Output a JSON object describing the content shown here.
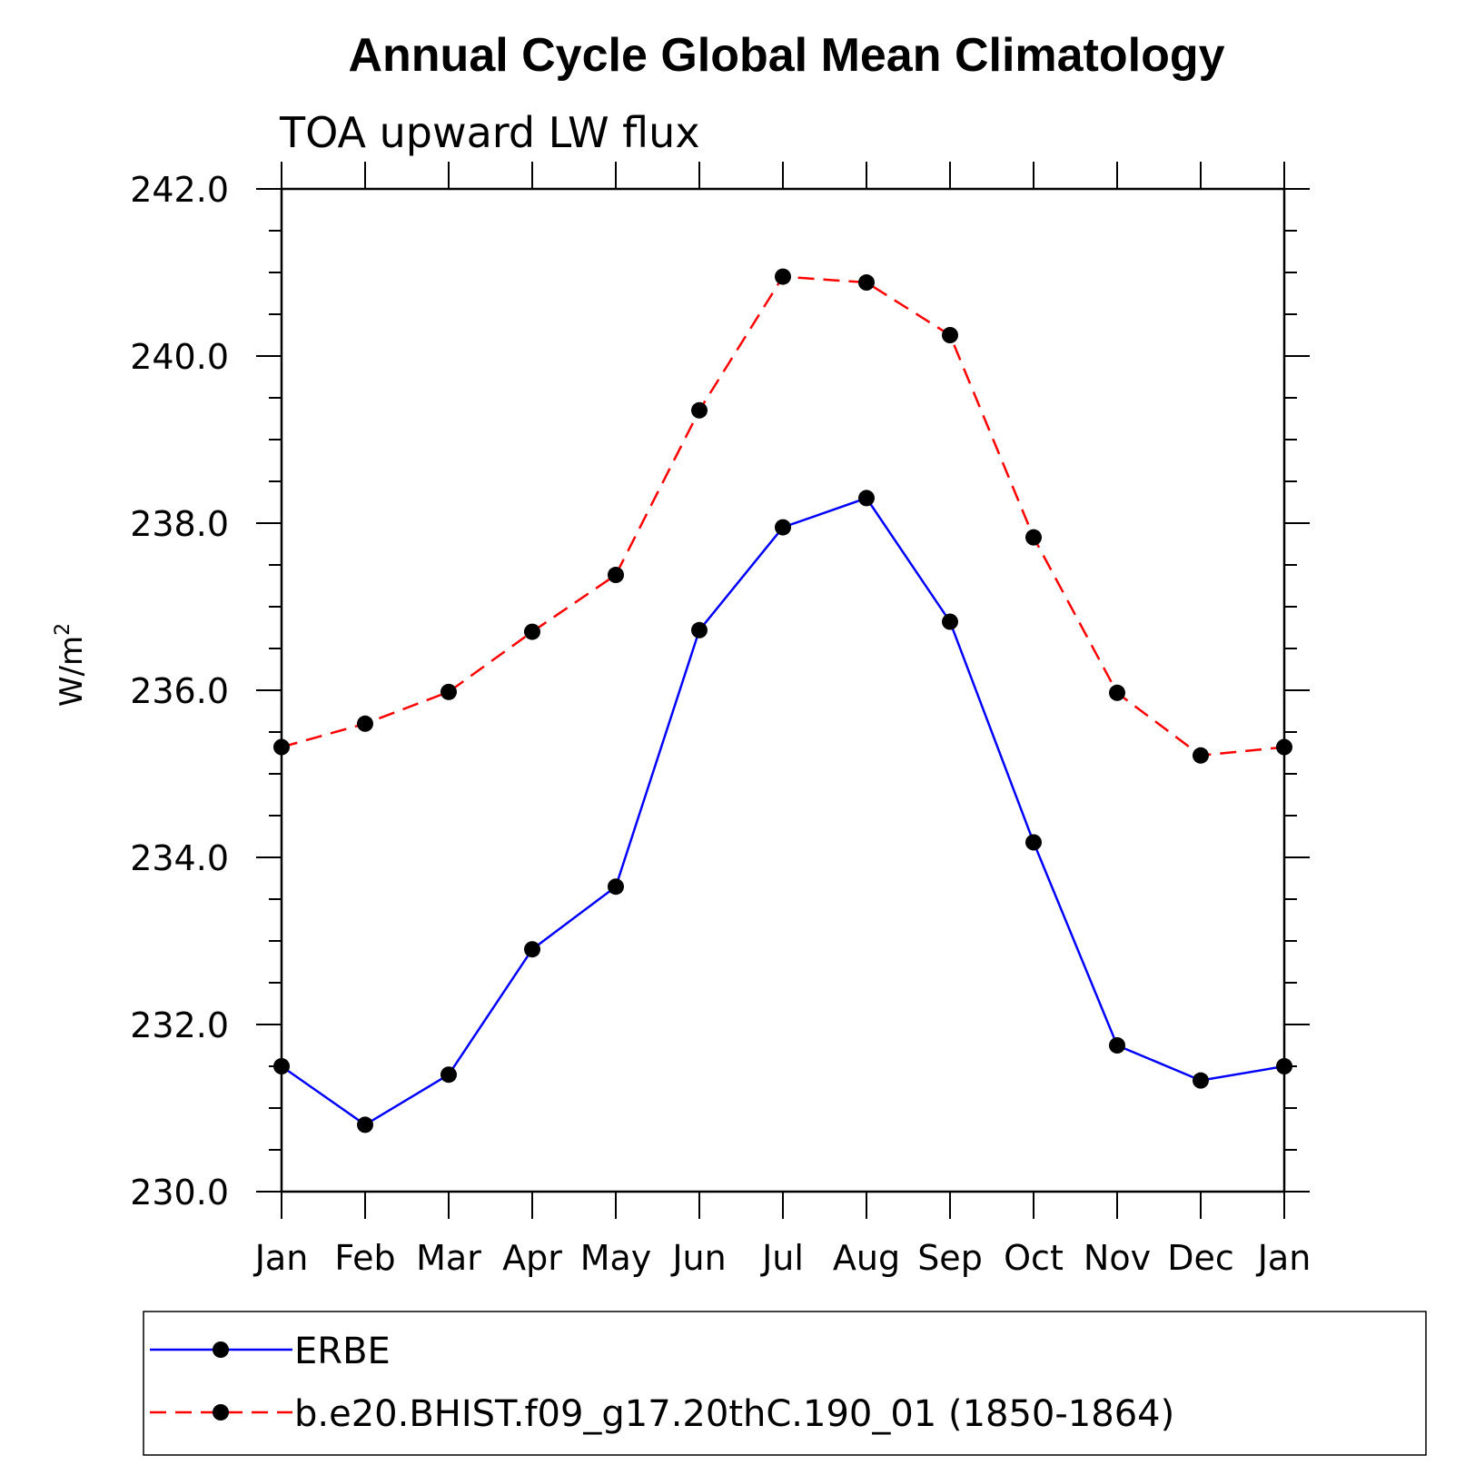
{
  "chart_data": {
    "type": "line",
    "title": "Annual Cycle Global Mean Climatology",
    "subtitle": "TOA upward LW flux",
    "xlabel": "",
    "ylabel": "W/m",
    "ylabel_sup": "2",
    "categories": [
      "Jan",
      "Feb",
      "Mar",
      "Apr",
      "May",
      "Jun",
      "Jul",
      "Aug",
      "Sep",
      "Oct",
      "Nov",
      "Dec",
      "Jan"
    ],
    "ylim": [
      230.0,
      242.0
    ],
    "yticks": [
      "230.0",
      "232.0",
      "234.0",
      "236.0",
      "238.0",
      "240.0",
      "242.0"
    ],
    "grid": false,
    "legend_position": "bottom",
    "series": [
      {
        "name": "ERBE",
        "color": "#0000ff",
        "line_style": "solid",
        "marker": "filled-circle",
        "values": [
          231.5,
          230.8,
          231.4,
          232.9,
          233.65,
          236.72,
          237.95,
          238.3,
          236.82,
          234.18,
          231.75,
          231.33,
          231.5
        ]
      },
      {
        "name": "b.e20.BHIST.f09_g17.20thC.190_01 (1850-1864)",
        "color": "#ff0000",
        "line_style": "dashed",
        "marker": "filled-circle",
        "values": [
          235.32,
          235.6,
          235.98,
          236.7,
          237.38,
          239.35,
          240.95,
          240.88,
          240.25,
          237.83,
          235.97,
          235.22,
          235.32
        ]
      }
    ]
  }
}
